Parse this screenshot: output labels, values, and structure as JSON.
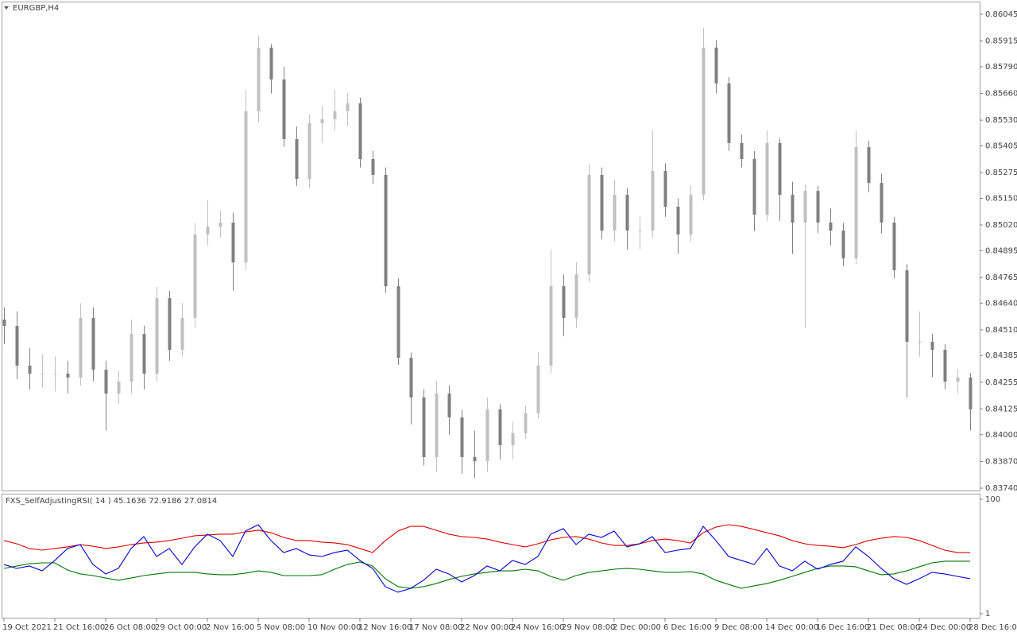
{
  "chart_data": [
    {
      "type": "candlestick",
      "title": "EURGBP,H4",
      "x": [
        "19 Oct 2021",
        null,
        null,
        null,
        "21 Oct 16:00",
        null,
        null,
        null,
        "26 Oct 08:00",
        null,
        null,
        null,
        "29 Oct 00:00",
        null,
        null,
        null,
        "2 Nov 16:00",
        null,
        null,
        null,
        "5 Nov 08:00",
        null,
        null,
        null,
        "10 Nov 00:00",
        null,
        null,
        null,
        "12 Nov 16:00",
        null,
        null,
        null,
        "17 Nov 08:00",
        null,
        null,
        null,
        "22 Nov 00:00",
        null,
        null,
        null,
        "24 Nov 16:00",
        null,
        null,
        null,
        "29 Nov 08:00",
        null,
        null,
        null,
        "2 Dec 00:00",
        null,
        null,
        null,
        "6 Dec 16:00",
        null,
        null,
        null,
        "9 Dec 08:00",
        null,
        null,
        null,
        "14 Dec 00:00",
        null,
        null,
        null,
        "16 Dec 16:00",
        null,
        null,
        null,
        "21 Dec 08:00",
        null,
        null,
        null,
        "24 Dec 00:00",
        null,
        null,
        null,
        "28 Dec 16:00"
      ],
      "open": [
        0.8456,
        0.84529,
        0.84336,
        0.84297,
        0.84297,
        0.84297,
        0.84278,
        0.84568,
        0.84316,
        0.842,
        0.84258,
        0.8449,
        0.84297,
        0.84664,
        0.84413,
        0.84568,
        0.84974,
        0.85012,
        0.85032,
        0.84838,
        0.85573,
        0.85883,
        0.85728,
        0.85438,
        0.85244,
        0.85515,
        0.85535,
        0.85573,
        0.85612,
        0.85341,
        0.85264,
        0.84722,
        0.84374,
        0.84181,
        0.83891,
        0.842,
        0.84084,
        0.83891,
        0.83871,
        0.84123,
        0.83949,
        0.84007,
        0.84104,
        0.84336,
        0.84722,
        0.84568,
        0.8478,
        0.85264,
        0.84993,
        0.85167,
        0.84993,
        0.84993,
        0.85283,
        0.85109,
        0.84974,
        0.85167,
        0.85883,
        0.85709,
        0.85419,
        0.85341,
        0.8507,
        0.85419,
        0.85167,
        0.85032,
        0.85186,
        0.85032,
        0.84993,
        0.84858,
        0.85399,
        0.85225,
        0.85032,
        0.848,
        0.84452,
        0.84452,
        0.84413,
        0.84258,
        0.84278
      ],
      "high": [
        0.8462,
        0.846,
        0.8442,
        0.8439,
        0.8438,
        0.8436,
        0.8464,
        0.8462,
        0.8436,
        0.8431,
        0.8456,
        0.8453,
        0.8472,
        0.847,
        0.8464,
        0.8503,
        0.8514,
        0.8509,
        0.8508,
        0.8568,
        0.8594,
        0.859,
        0.8579,
        0.855,
        0.8556,
        0.856,
        0.8568,
        0.8566,
        0.8564,
        0.8538,
        0.853,
        0.8476,
        0.844,
        0.8422,
        0.8426,
        0.8424,
        0.8412,
        0.8402,
        0.8418,
        0.8415,
        0.8406,
        0.8414,
        0.844,
        0.849,
        0.8478,
        0.8484,
        0.8532,
        0.853,
        0.8524,
        0.852,
        0.8506,
        0.8548,
        0.8532,
        0.8515,
        0.8521,
        0.85979,
        0.8592,
        0.8574,
        0.8546,
        0.8538,
        0.8548,
        0.8544,
        0.8523,
        0.8522,
        0.8521,
        0.851,
        0.8503,
        0.8548,
        0.8543,
        0.8527,
        0.8506,
        0.8483,
        0.846,
        0.8449,
        0.8444,
        0.8432,
        0.843
      ],
      "low": [
        0.8444,
        0.8427,
        0.8422,
        0.8423,
        0.8421,
        0.842,
        0.8424,
        0.8426,
        0.8402,
        0.8415,
        0.842,
        0.8422,
        0.8426,
        0.8436,
        0.8438,
        0.8452,
        0.8492,
        0.8496,
        0.847,
        0.848,
        0.8552,
        0.8566,
        0.854,
        0.8521,
        0.852,
        0.8542,
        0.8548,
        0.855,
        0.853,
        0.8522,
        0.8469,
        0.8434,
        0.8405,
        0.8385,
        0.8382,
        0.84,
        0.8381,
        0.8379,
        0.8382,
        0.8388,
        0.8388,
        0.8398,
        0.8408,
        0.843,
        0.8448,
        0.8452,
        0.8474,
        0.8495,
        0.8494,
        0.849,
        0.849,
        0.8496,
        0.8506,
        0.8488,
        0.8494,
        0.8514,
        0.8566,
        0.8538,
        0.853,
        0.8499,
        0.8504,
        0.8504,
        0.8488,
        0.8452,
        0.8498,
        0.8492,
        0.8482,
        0.8483,
        0.8518,
        0.8498,
        0.8476,
        0.8418,
        0.8438,
        0.8428,
        0.8422,
        0.842,
        0.8402
      ],
      "close": [
        0.84529,
        0.84336,
        0.84297,
        0.84297,
        0.84297,
        0.84278,
        0.84568,
        0.84316,
        0.842,
        0.84258,
        0.8449,
        0.84297,
        0.84664,
        0.84413,
        0.84568,
        0.84974,
        0.85012,
        0.85032,
        0.84838,
        0.85573,
        0.85883,
        0.85728,
        0.85438,
        0.85244,
        0.85515,
        0.85535,
        0.85573,
        0.85612,
        0.85341,
        0.85264,
        0.84722,
        0.84374,
        0.84181,
        0.83891,
        0.842,
        0.84084,
        0.83891,
        0.83871,
        0.84123,
        0.83949,
        0.84007,
        0.84104,
        0.84336,
        0.84722,
        0.84568,
        0.8478,
        0.85264,
        0.84993,
        0.85167,
        0.84993,
        0.84993,
        0.85283,
        0.85109,
        0.84974,
        0.85167,
        0.85883,
        0.85709,
        0.85419,
        0.85341,
        0.8507,
        0.85419,
        0.85167,
        0.85032,
        0.85186,
        0.85032,
        0.84993,
        0.84858,
        0.85399,
        0.85225,
        0.85032,
        0.848,
        0.84452,
        0.84452,
        0.84413,
        0.84258,
        0.84278,
        0.84123
      ],
      "bull_color": "#c0c0c0",
      "bear_color": "#808080",
      "ylim": [
        0.8374,
        0.86045
      ],
      "yticks": [
        {
          "value": 0.86045,
          "label": "0.86045"
        },
        {
          "value": 0.85915,
          "label": "0.85915"
        },
        {
          "value": 0.8579,
          "label": "0.85790"
        },
        {
          "value": 0.8566,
          "label": "0.85660"
        },
        {
          "value": 0.8553,
          "label": "0.85530"
        },
        {
          "value": 0.85405,
          "label": "0.85405"
        },
        {
          "value": 0.85275,
          "label": "0.85275"
        },
        {
          "value": 0.8515,
          "label": "0.85150"
        },
        {
          "value": 0.8502,
          "label": "0.85020"
        },
        {
          "value": 0.84895,
          "label": "0.84895"
        },
        {
          "value": 0.84765,
          "label": "0.84765"
        },
        {
          "value": 0.8464,
          "label": "0.84640"
        },
        {
          "value": 0.8451,
          "label": "0.84510"
        },
        {
          "value": 0.84385,
          "label": "0.84385"
        },
        {
          "value": 0.84255,
          "label": "0.84255"
        },
        {
          "value": 0.84125,
          "label": "0.84125"
        },
        {
          "value": 0.84,
          "label": "0.84000"
        },
        {
          "value": 0.8387,
          "label": "0.83870"
        },
        {
          "value": 0.8374,
          "label": "0.83740"
        }
      ],
      "grid": false
    },
    {
      "type": "line",
      "title": "FXS_SelfAdjustingRSI( 14 ) 45.1636 72.9186 27.0814",
      "series": [
        {
          "color": "#dd0000",
          "values": [
            64.3,
            61.5,
            57.4,
            56.0,
            57.4,
            58.8,
            60.8,
            59.4,
            57.4,
            58.8,
            60.8,
            62.2,
            62.9,
            64.3,
            66.3,
            68.4,
            69.1,
            69.8,
            69.8,
            71.8,
            73.2,
            71.1,
            67.0,
            64.3,
            64.3,
            62.9,
            62.2,
            60.8,
            57.4,
            53.9,
            64.3,
            72.5,
            76.6,
            76.6,
            73.2,
            69.8,
            67.7,
            67.0,
            65.6,
            62.9,
            60.8,
            58.8,
            61.5,
            64.9,
            67.0,
            67.7,
            65.6,
            62.2,
            60.1,
            60.1,
            61.5,
            64.3,
            65.6,
            64.3,
            62.2,
            71.1,
            75.9,
            78.0,
            76.6,
            73.9,
            71.1,
            68.4,
            64.3,
            61.5,
            60.1,
            59.4,
            58.1,
            60.8,
            64.3,
            66.3,
            67.7,
            67.0,
            64.3,
            60.1,
            56.0,
            53.9,
            53.9
          ]
        },
        {
          "color": "#007700",
          "values": [
            40.2,
            42.3,
            44.3,
            45.0,
            45.0,
            38.8,
            35.4,
            34.0,
            31.9,
            29.9,
            31.9,
            34.0,
            35.4,
            36.8,
            36.8,
            36.8,
            35.4,
            34.7,
            34.7,
            36.1,
            38.1,
            36.8,
            34.0,
            34.0,
            34.0,
            34.7,
            39.5,
            43.6,
            45.7,
            42.3,
            31.3,
            24.4,
            23.0,
            24.4,
            27.1,
            30.6,
            33.3,
            35.4,
            36.8,
            38.1,
            38.1,
            39.5,
            38.1,
            33.3,
            29.9,
            34.0,
            36.8,
            38.1,
            39.5,
            40.2,
            39.5,
            38.1,
            36.8,
            36.8,
            37.4,
            35.4,
            29.9,
            26.4,
            23.0,
            25.1,
            27.1,
            29.9,
            33.3,
            36.8,
            40.2,
            42.3,
            42.3,
            41.6,
            38.1,
            34.7,
            35.4,
            38.1,
            41.6,
            45.0,
            46.4,
            46.4,
            46.4
          ]
        },
        {
          "color": "#0000cc",
          "values": [
            43.6,
            40.2,
            42.3,
            38.1,
            47.1,
            57.4,
            60.8,
            43.6,
            35.4,
            40.2,
            57.4,
            67.7,
            50.5,
            57.4,
            43.6,
            58.8,
            69.8,
            64.3,
            50.5,
            72.5,
            78.0,
            64.3,
            53.9,
            57.4,
            51.9,
            50.5,
            53.9,
            56.0,
            47.1,
            40.2,
            24.4,
            19.6,
            23.0,
            29.9,
            39.5,
            35.4,
            28.5,
            34.0,
            42.3,
            38.1,
            47.1,
            43.6,
            50.5,
            69.8,
            74.6,
            60.8,
            69.8,
            67.0,
            72.5,
            58.8,
            61.5,
            67.7,
            53.9,
            56.0,
            57.4,
            76.6,
            64.3,
            50.5,
            47.1,
            43.6,
            57.4,
            42.3,
            38.1,
            46.4,
            39.5,
            43.6,
            46.4,
            58.8,
            50.5,
            40.2,
            31.3,
            26.4,
            31.3,
            36.8,
            35.4,
            33.3,
            31.3
          ]
        }
      ],
      "ylim": [
        1,
        100
      ],
      "yticks": [
        1,
        100
      ],
      "grid": false
    }
  ]
}
